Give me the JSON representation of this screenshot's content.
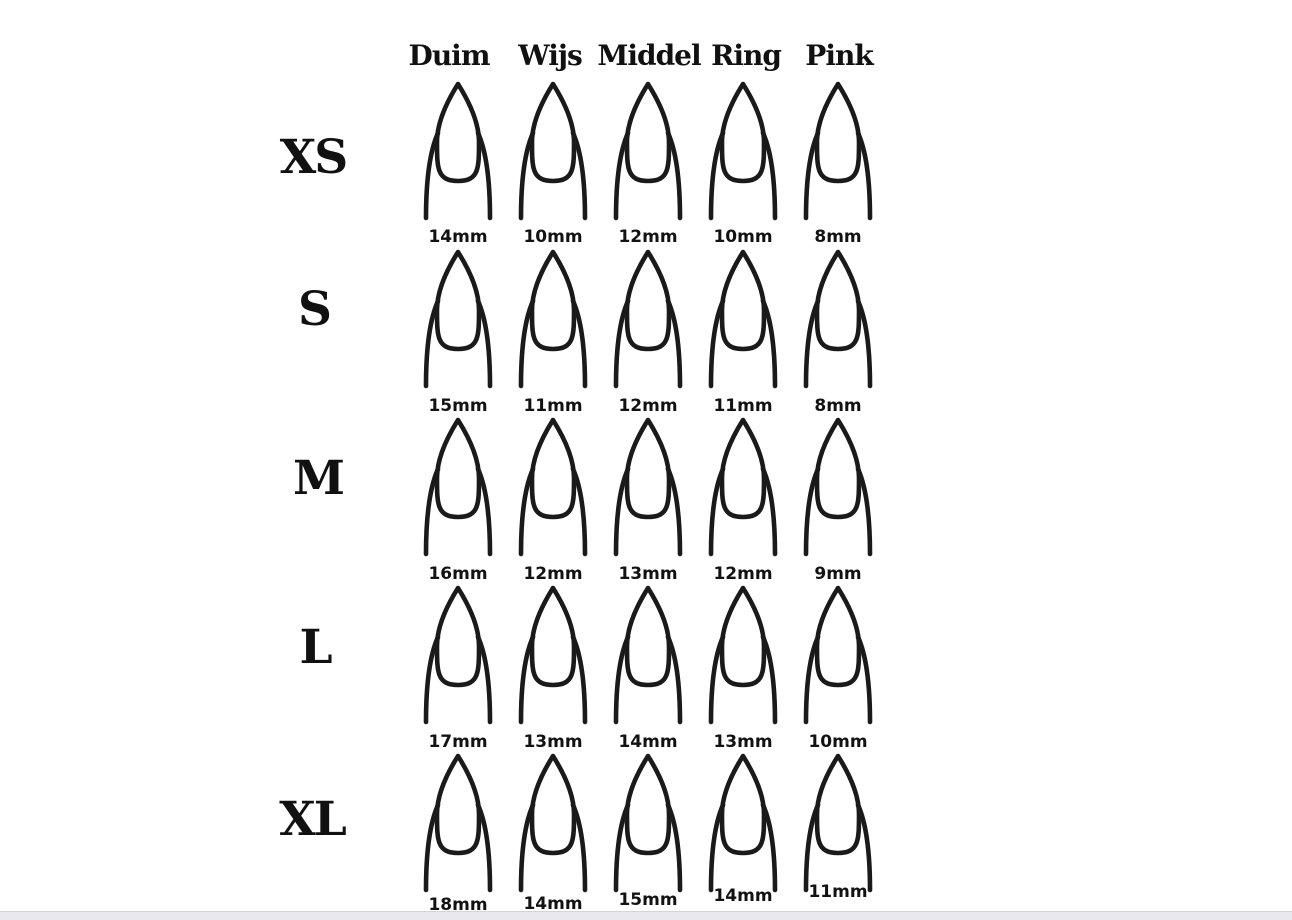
{
  "page": {
    "background_color": "#ffffff",
    "line_color": "#1a1a1a",
    "text_color": "#111111",
    "bottom_bar_color": "#e8e8ee"
  },
  "chart": {
    "columns": [
      "Duim",
      "Wijs",
      "Middel",
      "Ring",
      "Pink"
    ],
    "rows": [
      {
        "label": "XS",
        "values": [
          "14mm",
          "10mm",
          "12mm",
          "10mm",
          "8mm"
        ]
      },
      {
        "label": "S",
        "values": [
          "15mm",
          "11mm",
          "12mm",
          "11mm",
          "8mm"
        ]
      },
      {
        "label": "M",
        "values": [
          "16mm",
          "12mm",
          "13mm",
          "12mm",
          "9mm"
        ]
      },
      {
        "label": "L",
        "values": [
          "17mm",
          "13mm",
          "14mm",
          "13mm",
          "10mm"
        ]
      },
      {
        "label": "XL",
        "values": [
          "18mm",
          "14mm",
          "15mm",
          "14mm",
          "11mm"
        ]
      }
    ],
    "icon": "almond-nail"
  },
  "chart_data": {
    "type": "table",
    "title": "",
    "columns": [
      "Duim",
      "Wijs",
      "Middel",
      "Ring",
      "Pink"
    ],
    "row_labels": [
      "XS",
      "S",
      "M",
      "L",
      "XL"
    ],
    "unit": "mm",
    "values_mm": [
      [
        14,
        10,
        12,
        10,
        8
      ],
      [
        15,
        11,
        12,
        11,
        8
      ],
      [
        16,
        12,
        13,
        12,
        9
      ],
      [
        17,
        13,
        14,
        13,
        10
      ],
      [
        18,
        14,
        15,
        14,
        11
      ]
    ],
    "layout_hints": {
      "grid": "5 sizes x 5 fingers",
      "cell_glyph": "almond nail outline above fingertip",
      "value_position": "below each nail"
    }
  }
}
